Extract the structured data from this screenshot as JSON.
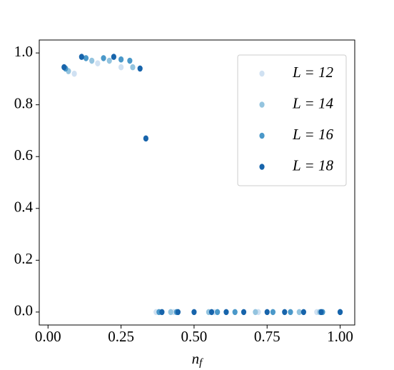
{
  "chart_data": {
    "type": "scatter",
    "xlabel": "nf",
    "xlim": [
      -0.03,
      1.05
    ],
    "ylim": [
      -0.05,
      1.05
    ],
    "xticks": [
      {
        "value": 0,
        "label": "0.00"
      },
      {
        "value": 0.25,
        "label": "0.25"
      },
      {
        "value": 0.5,
        "label": "0.50"
      },
      {
        "value": 0.75,
        "label": "0.75"
      },
      {
        "value": 1,
        "label": "1.00"
      }
    ],
    "yticks": [
      {
        "value": 0,
        "label": "0.0"
      },
      {
        "value": 0.2,
        "label": "0.2"
      },
      {
        "value": 0.4,
        "label": "0.4"
      },
      {
        "value": 0.6,
        "label": "0.6"
      },
      {
        "value": 0.8,
        "label": "0.8"
      },
      {
        "value": 1,
        "label": "1.0"
      }
    ],
    "legend": "upper right",
    "series": [
      {
        "name": "L = 12",
        "color": "#d0e1f2",
        "x": [
          0.09,
          0.17,
          0.25,
          0.37,
          0.43,
          0.57,
          0.72,
          0.92
        ],
        "values": [
          0.92,
          0.96,
          0.945,
          0,
          0,
          0,
          0,
          0
        ]
      },
      {
        "name": "L = 14",
        "color": "#94c4df",
        "x": [
          0.07,
          0.15,
          0.21,
          0.29,
          0.42,
          0.55,
          0.71,
          0.86,
          0.93
        ],
        "values": [
          0.93,
          0.97,
          0.97,
          0.945,
          0,
          0,
          0,
          0,
          0
        ]
      },
      {
        "name": "L = 16",
        "color": "#4a98c9",
        "x": [
          0.06,
          0.13,
          0.19,
          0.25,
          0.28,
          0.38,
          0.44,
          0.58,
          0.64,
          0.77,
          0.83,
          0.94,
          1.0
        ],
        "values": [
          0.94,
          0.98,
          0.98,
          0.975,
          0.97,
          0,
          0,
          0,
          0,
          0,
          0,
          0,
          0
        ]
      },
      {
        "name": "L = 18",
        "color": "#1764ab",
        "x": [
          0.055,
          0.115,
          0.225,
          0.315,
          0.335,
          0.39,
          0.445,
          0.5,
          0.56,
          0.61,
          0.67,
          0.75,
          0.81,
          0.875,
          0.935,
          1.0
        ],
        "values": [
          0.945,
          0.985,
          0.985,
          0.94,
          0.67,
          0,
          0,
          0,
          0,
          0,
          0,
          0,
          0,
          0,
          0,
          0
        ]
      }
    ]
  }
}
